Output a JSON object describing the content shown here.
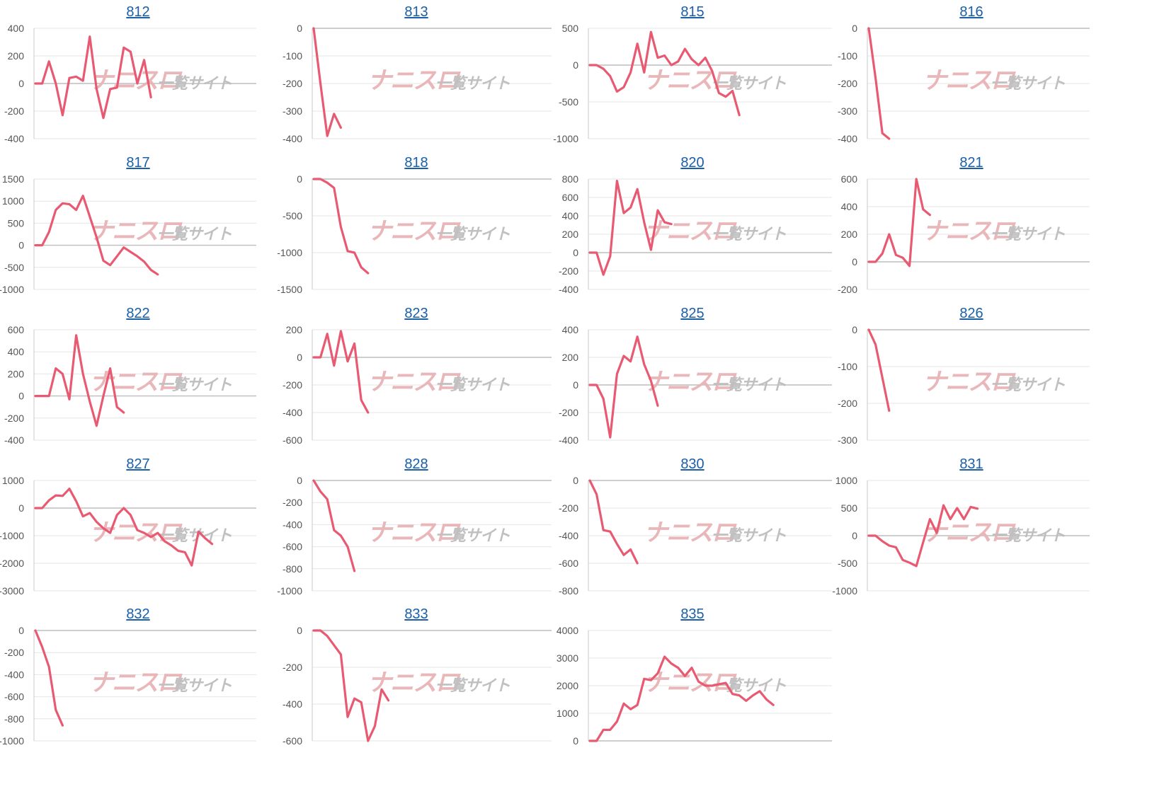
{
  "colors": {
    "series": "#e85a72",
    "title_link": "#1a5fa8"
  },
  "watermark": {
    "brand_mark": "ナニスロ",
    "site": "一覧サイト"
  },
  "chart_data": [
    {
      "type": "line",
      "title": "812",
      "ylim": [
        -400,
        400
      ],
      "yticks": [
        400,
        200,
        0,
        -200,
        -400
      ],
      "values": [
        0,
        0,
        160,
        0,
        -230,
        40,
        50,
        20,
        340,
        -40,
        -250,
        -40,
        -30,
        260,
        230,
        0,
        170,
        -100
      ]
    },
    {
      "type": "line",
      "title": "813",
      "ylim": [
        -400,
        0
      ],
      "yticks": [
        0,
        -100,
        -200,
        -300,
        -400
      ],
      "values": [
        0,
        -200,
        -390,
        -310,
        -360
      ]
    },
    {
      "type": "line",
      "title": "815",
      "ylim": [
        -1000,
        500
      ],
      "yticks": [
        500,
        0,
        -500,
        -1000
      ],
      "values": [
        0,
        0,
        -50,
        -150,
        -360,
        -300,
        -100,
        290,
        -100,
        450,
        100,
        130,
        0,
        50,
        220,
        80,
        0,
        100,
        -80,
        -380,
        -430,
        -350,
        -680
      ]
    },
    {
      "type": "line",
      "title": "816",
      "ylim": [
        -400,
        0
      ],
      "yticks": [
        0,
        -100,
        -200,
        -300,
        -400
      ],
      "values": [
        0,
        -180,
        -380,
        -400
      ]
    },
    {
      "type": "line",
      "title": "817",
      "ylim": [
        -1000,
        1500
      ],
      "yticks": [
        1500,
        1000,
        500,
        0,
        -500,
        -1000
      ],
      "values": [
        0,
        0,
        300,
        800,
        950,
        930,
        800,
        1120,
        650,
        180,
        -350,
        -450,
        -250,
        -50,
        -150,
        -250,
        -370,
        -560,
        -660
      ]
    },
    {
      "type": "line",
      "title": "818",
      "ylim": [
        -1500,
        0
      ],
      "yticks": [
        0,
        -500,
        -1000,
        -1500
      ],
      "values": [
        0,
        0,
        -50,
        -120,
        -650,
        -980,
        -1000,
        -1200,
        -1280
      ]
    },
    {
      "type": "line",
      "title": "820",
      "ylim": [
        -400,
        800
      ],
      "yticks": [
        800,
        600,
        400,
        200,
        0,
        -200,
        -400
      ],
      "values": [
        0,
        0,
        -240,
        -40,
        780,
        430,
        490,
        690,
        330,
        30,
        460,
        330,
        310
      ]
    },
    {
      "type": "line",
      "title": "821",
      "ylim": [
        -200,
        600
      ],
      "yticks": [
        600,
        400,
        200,
        0,
        -200
      ],
      "values": [
        0,
        0,
        60,
        200,
        50,
        30,
        -30,
        600,
        380,
        340
      ]
    },
    {
      "type": "line",
      "title": "822",
      "ylim": [
        -400,
        600
      ],
      "yticks": [
        600,
        400,
        200,
        0,
        -200,
        -400
      ],
      "values": [
        0,
        0,
        0,
        250,
        200,
        -30,
        550,
        200,
        -50,
        -270,
        0,
        250,
        -100,
        -150
      ]
    },
    {
      "type": "line",
      "title": "823",
      "ylim": [
        -600,
        200
      ],
      "yticks": [
        200,
        0,
        -200,
        -400,
        -600
      ],
      "values": [
        0,
        0,
        170,
        -60,
        190,
        -30,
        100,
        -310,
        -400
      ]
    },
    {
      "type": "line",
      "title": "825",
      "ylim": [
        -400,
        400
      ],
      "yticks": [
        400,
        200,
        0,
        -200,
        -400
      ],
      "values": [
        0,
        0,
        -100,
        -380,
        80,
        210,
        170,
        350,
        150,
        30,
        -150
      ]
    },
    {
      "type": "line",
      "title": "826",
      "ylim": [
        -300,
        0
      ],
      "yticks": [
        0,
        -100,
        -200,
        -300
      ],
      "values": [
        0,
        -40,
        -130,
        -220
      ]
    },
    {
      "type": "line",
      "title": "827",
      "ylim": [
        -3000,
        1000
      ],
      "yticks": [
        1000,
        0,
        -1000,
        -2000,
        -3000
      ],
      "values": [
        0,
        0,
        280,
        460,
        440,
        700,
        250,
        -300,
        -180,
        -500,
        -730,
        -900,
        -250,
        0,
        -250,
        -800,
        -900,
        -1050,
        -900,
        -1200,
        -1350,
        -1550,
        -1600,
        -2080,
        -850,
        -1100,
        -1300
      ]
    },
    {
      "type": "line",
      "title": "828",
      "ylim": [
        -1000,
        0
      ],
      "yticks": [
        0,
        -200,
        -400,
        -600,
        -800,
        -1000
      ],
      "values": [
        0,
        -100,
        -170,
        -450,
        -500,
        -600,
        -820
      ]
    },
    {
      "type": "line",
      "title": "830",
      "ylim": [
        -800,
        0
      ],
      "yticks": [
        0,
        -200,
        -400,
        -600,
        -800
      ],
      "values": [
        0,
        -100,
        -360,
        -370,
        -460,
        -540,
        -500,
        -600
      ]
    },
    {
      "type": "line",
      "title": "831",
      "ylim": [
        -1000,
        1000
      ],
      "yticks": [
        1000,
        500,
        0,
        -500,
        -1000
      ],
      "values": [
        0,
        0,
        -100,
        -180,
        -210,
        -440,
        -490,
        -550,
        -120,
        300,
        50,
        550,
        300,
        500,
        300,
        520,
        490
      ]
    },
    {
      "type": "line",
      "title": "832",
      "ylim": [
        -1000,
        0
      ],
      "yticks": [
        0,
        -200,
        -400,
        -600,
        -800,
        -1000
      ],
      "values": [
        0,
        -150,
        -330,
        -720,
        -860
      ]
    },
    {
      "type": "line",
      "title": "833",
      "ylim": [
        -600,
        0
      ],
      "yticks": [
        0,
        -200,
        -400,
        -600
      ],
      "values": [
        0,
        0,
        -30,
        -80,
        -130,
        -470,
        -370,
        -390,
        -600,
        -520,
        -320,
        -380
      ]
    },
    {
      "type": "line",
      "title": "835",
      "ylim": [
        0,
        4000
      ],
      "yticks": [
        4000,
        3000,
        2000,
        1000,
        0
      ],
      "values": [
        0,
        0,
        400,
        400,
        700,
        1350,
        1150,
        1300,
        2250,
        2200,
        2450,
        3050,
        2800,
        2650,
        2350,
        2650,
        2150,
        2000,
        2000,
        2050,
        2100,
        1700,
        1650,
        1450,
        1650,
        1800,
        1500,
        1300
      ]
    }
  ]
}
